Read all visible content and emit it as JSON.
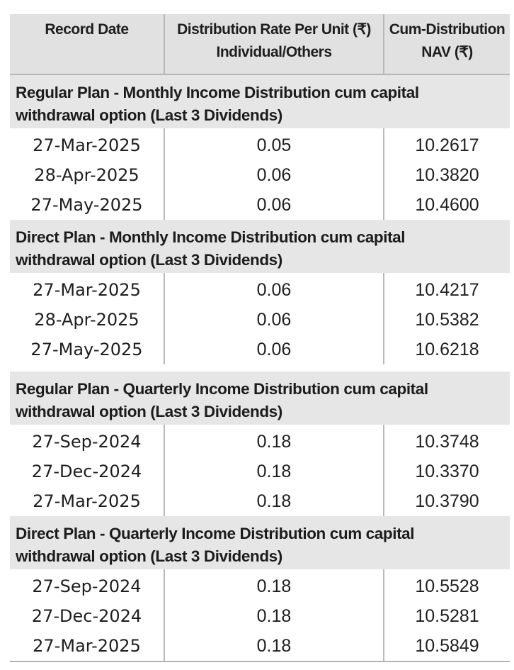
{
  "header": {
    "col1": "Record Date",
    "col2_line1": "Distribution Rate Per Unit  (₹)",
    "col2_line2": "Individual/Others",
    "col3_line1": "Cum-Distribution",
    "col3_line2": "NAV (₹)"
  },
  "sections": [
    {
      "title_line1": "Regular Plan - Monthly Income Distribution cum capital",
      "title_line2": "withdrawal option (Last 3 Dividends)",
      "rows": [
        {
          "date": "27-Mar-2025",
          "rate": "0.05",
          "nav": "10.2617"
        },
        {
          "date": "28-Apr-2025",
          "rate": "0.06",
          "nav": "10.3820"
        },
        {
          "date": "27-May-2025",
          "rate": "0.06",
          "nav": "10.4600"
        }
      ]
    },
    {
      "title_line1": "Direct Plan - Monthly Income Distribution cum capital",
      "title_line2": "withdrawal option (Last 3 Dividends)",
      "rows": [
        {
          "date": "27-Mar-2025",
          "rate": "0.06",
          "nav": "10.4217"
        },
        {
          "date": "28-Apr-2025",
          "rate": "0.06",
          "nav": "10.5382"
        },
        {
          "date": "27-May-2025",
          "rate": "0.06",
          "nav": "10.6218"
        }
      ]
    },
    {
      "title_line1": "Regular Plan - Quarterly Income Distribution cum capital",
      "title_line2": "withdrawal option (Last 3 Dividends)",
      "rows": [
        {
          "date": "27-Sep-2024",
          "rate": "0.18",
          "nav": "10.3748"
        },
        {
          "date": "27-Dec-2024",
          "rate": "0.18",
          "nav": "10.3370"
        },
        {
          "date": "27-Mar-2025",
          "rate": "0.18",
          "nav": "10.3790"
        }
      ]
    },
    {
      "title_line1": "Direct Plan - Quarterly Income Distribution cum capital",
      "title_line2": "withdrawal option (Last 3 Dividends)",
      "rows": [
        {
          "date": "27-Sep-2024",
          "rate": "0.18",
          "nav": "10.5528"
        },
        {
          "date": "27-Dec-2024",
          "rate": "0.18",
          "nav": "10.5281"
        },
        {
          "date": "27-Mar-2025",
          "rate": "0.18",
          "nav": "10.5849"
        }
      ]
    }
  ]
}
